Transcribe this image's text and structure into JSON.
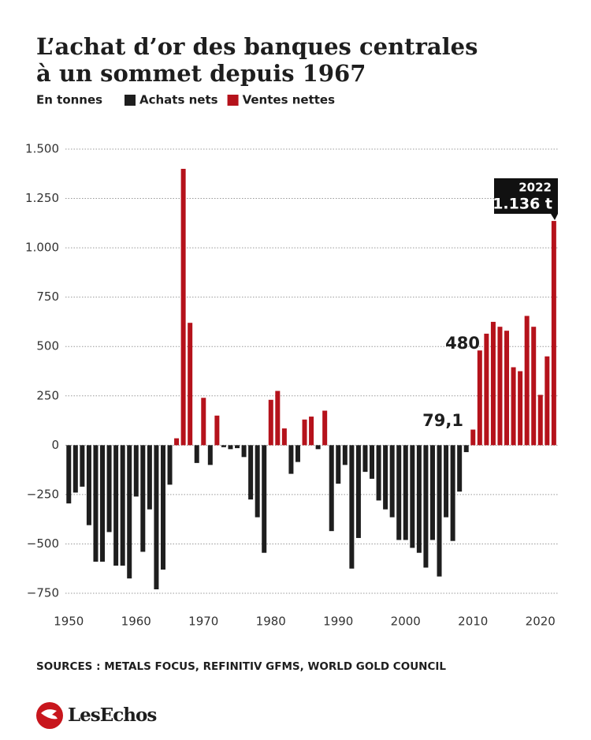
{
  "chart_data": {
    "type": "bar",
    "title": [
      "L’achat d’or des banques centrales",
      "à un sommet depuis 1967"
    ],
    "subtitle": "En tonnes",
    "legend": [
      {
        "name": "Achats nets",
        "color": "#1e1e1e"
      },
      {
        "name": "Ventes nettes",
        "color": "#b5121b"
      }
    ],
    "x": [
      1950,
      1951,
      1952,
      1953,
      1954,
      1955,
      1956,
      1957,
      1958,
      1959,
      1960,
      1961,
      1962,
      1963,
      1964,
      1965,
      1966,
      1967,
      1968,
      1969,
      1970,
      1971,
      1972,
      1973,
      1974,
      1975,
      1976,
      1977,
      1978,
      1979,
      1980,
      1981,
      1982,
      1983,
      1984,
      1985,
      1986,
      1987,
      1988,
      1989,
      1990,
      1991,
      1992,
      1993,
      1994,
      1995,
      1996,
      1997,
      1998,
      1999,
      2000,
      2001,
      2002,
      2003,
      2004,
      2005,
      2006,
      2007,
      2008,
      2009,
      2010,
      2011,
      2012,
      2013,
      2014,
      2015,
      2016,
      2017,
      2018,
      2019,
      2020,
      2021,
      2022
    ],
    "values": [
      -295,
      -240,
      -210,
      -405,
      -590,
      -590,
      -440,
      -610,
      -610,
      -675,
      -260,
      -540,
      -325,
      -730,
      -630,
      -200,
      35,
      1400,
      620,
      -90,
      240,
      -100,
      150,
      -10,
      -20,
      -15,
      -60,
      -275,
      -365,
      -545,
      230,
      275,
      85,
      -145,
      -85,
      130,
      145,
      -20,
      175,
      -435,
      -195,
      -100,
      -625,
      -470,
      -135,
      -170,
      -280,
      -325,
      -365,
      -480,
      -480,
      -520,
      -545,
      -620,
      -480,
      -665,
      -365,
      -485,
      -235,
      -35,
      79.1,
      480,
      565,
      625,
      600,
      580,
      395,
      375,
      655,
      600,
      255,
      450,
      1136
    ],
    "annotations": [
      "79,1",
      "480",
      "2022",
      "1.136 t"
    ],
    "xlim": [
      1949.5,
      2022.6
    ],
    "xticks": [
      1950,
      1960,
      1970,
      1980,
      1990,
      2000,
      2010,
      2020
    ],
    "ylim": [
      -750,
      1500
    ],
    "yticks": [
      {
        "value": 1500,
        "label": "1.500"
      },
      {
        "value": 1250,
        "label": "1.250"
      },
      {
        "value": 1000,
        "label": "1.000"
      },
      750,
      500,
      250,
      0,
      {
        "value": -250,
        "label": "−250"
      },
      {
        "value": -500,
        "label": "−500"
      },
      {
        "value": -750,
        "label": "−750"
      }
    ],
    "grid": true,
    "source": "SOURCES : METALS FOCUS, REFINITIV GFMS, WORLD GOLD COUNCIL",
    "brand": "LesEchos"
  }
}
